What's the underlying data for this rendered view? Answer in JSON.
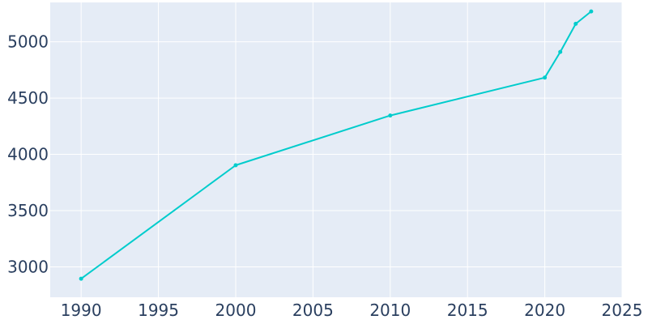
{
  "chart_data": {
    "type": "line",
    "title": "",
    "xlabel": "",
    "ylabel": "",
    "xlim": [
      1988,
      2025
    ],
    "ylim": [
      2730,
      5350
    ],
    "x_ticks": [
      1990,
      1995,
      2000,
      2005,
      2010,
      2015,
      2020,
      2025
    ],
    "y_ticks": [
      3000,
      3500,
      4000,
      4500,
      5000
    ],
    "grid": true,
    "legend": "none",
    "colors": {
      "plot_background": "#e5ecf6",
      "gridline": "#ffffff",
      "line": "#00cccc",
      "tick_text": "#2a3f5f"
    },
    "series": [
      {
        "x": [
          1990,
          2000,
          2010,
          2020,
          2021,
          2022,
          2023
        ],
        "y": [
          2895,
          3903,
          4345,
          4682,
          4910,
          5160,
          5270
        ]
      }
    ]
  }
}
